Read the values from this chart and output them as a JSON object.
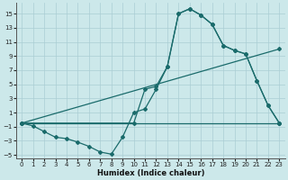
{
  "xlabel": "Humidex (Indice chaleur)",
  "bg_color": "#cce8ea",
  "grid_color": "#aacdd4",
  "line_color": "#1a6b6b",
  "xlim": [
    -0.5,
    23.5
  ],
  "ylim": [
    -5.5,
    16.5
  ],
  "yticks": [
    -5,
    -3,
    -1,
    1,
    3,
    5,
    7,
    9,
    11,
    13,
    15
  ],
  "xticks": [
    0,
    1,
    2,
    3,
    4,
    5,
    6,
    7,
    8,
    9,
    10,
    11,
    12,
    13,
    14,
    15,
    16,
    17,
    18,
    19,
    20,
    21,
    22,
    23
  ],
  "line1_x": [
    0,
    1,
    2,
    3,
    4,
    5,
    6,
    7,
    8,
    9,
    10,
    11,
    12,
    13,
    14,
    15,
    16,
    17,
    18,
    19,
    20,
    21,
    22,
    23
  ],
  "line1_y": [
    -0.5,
    -0.9,
    -1.7,
    -2.5,
    -2.7,
    -3.2,
    -3.8,
    -4.6,
    -4.9,
    -2.5,
    1.0,
    1.5,
    4.3,
    7.5,
    15.0,
    15.7,
    14.8,
    13.5,
    10.5,
    9.8,
    9.3,
    5.5,
    2.0,
    -0.5
  ],
  "line2_x": [
    0,
    10,
    11,
    12,
    13,
    14,
    15,
    16,
    17,
    18,
    19,
    20,
    21,
    22,
    23
  ],
  "line2_y": [
    -0.5,
    -0.5,
    4.3,
    4.7,
    7.5,
    15.0,
    15.7,
    14.8,
    13.5,
    10.5,
    9.8,
    9.3,
    5.5,
    2.0,
    -0.5
  ],
  "line3_x": [
    0,
    23
  ],
  "line3_y": [
    -0.5,
    10.0
  ],
  "line4_x": [
    0,
    23
  ],
  "line4_y": [
    -0.5,
    -0.5
  ]
}
